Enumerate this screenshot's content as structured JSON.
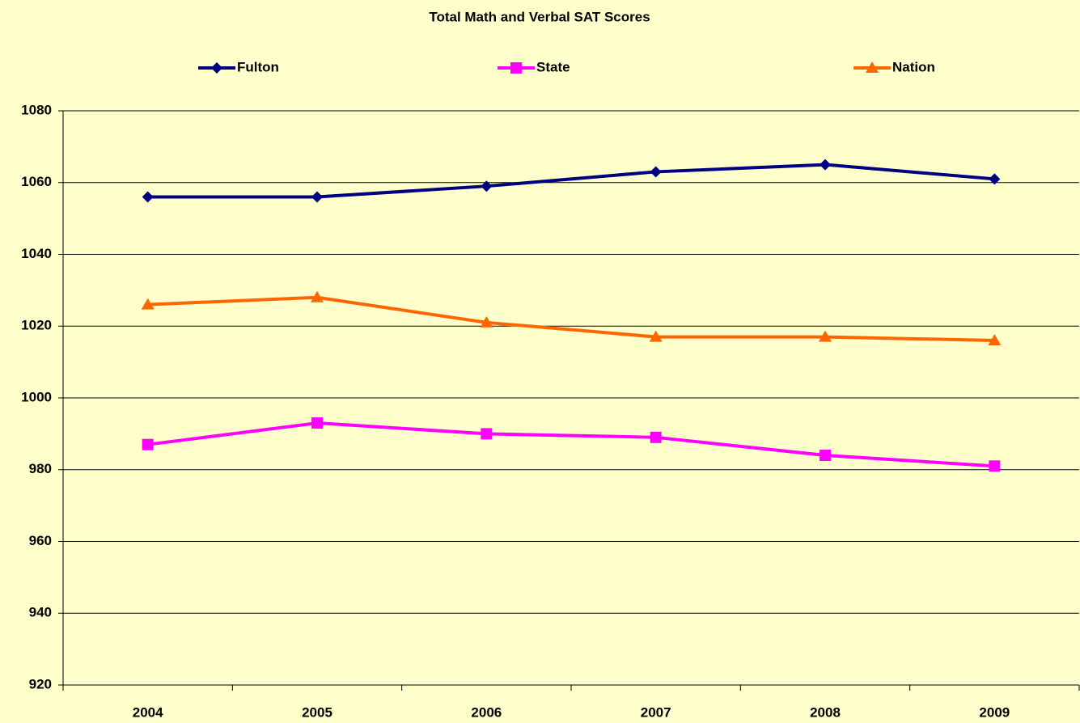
{
  "chart_data": {
    "type": "line",
    "title": "Total Math and Verbal SAT Scores",
    "categories": [
      "2004",
      "2005",
      "2006",
      "2007",
      "2008",
      "2009"
    ],
    "series": [
      {
        "name": "Fulton",
        "color": "#000080",
        "marker": "diamond",
        "values": [
          1056,
          1056,
          1059,
          1063,
          1065,
          1061
        ]
      },
      {
        "name": "State",
        "color": "#ff00ff",
        "marker": "square",
        "values": [
          987,
          993,
          990,
          989,
          984,
          981
        ]
      },
      {
        "name": "Nation",
        "color": "#ff6600",
        "marker": "triangle",
        "values": [
          1026,
          1028,
          1021,
          1017,
          1017,
          1016
        ]
      }
    ],
    "ylim": [
      920,
      1080
    ],
    "yticks": [
      920,
      940,
      960,
      980,
      1000,
      1020,
      1040,
      1060,
      1080
    ],
    "grid": true,
    "legend": "top"
  }
}
